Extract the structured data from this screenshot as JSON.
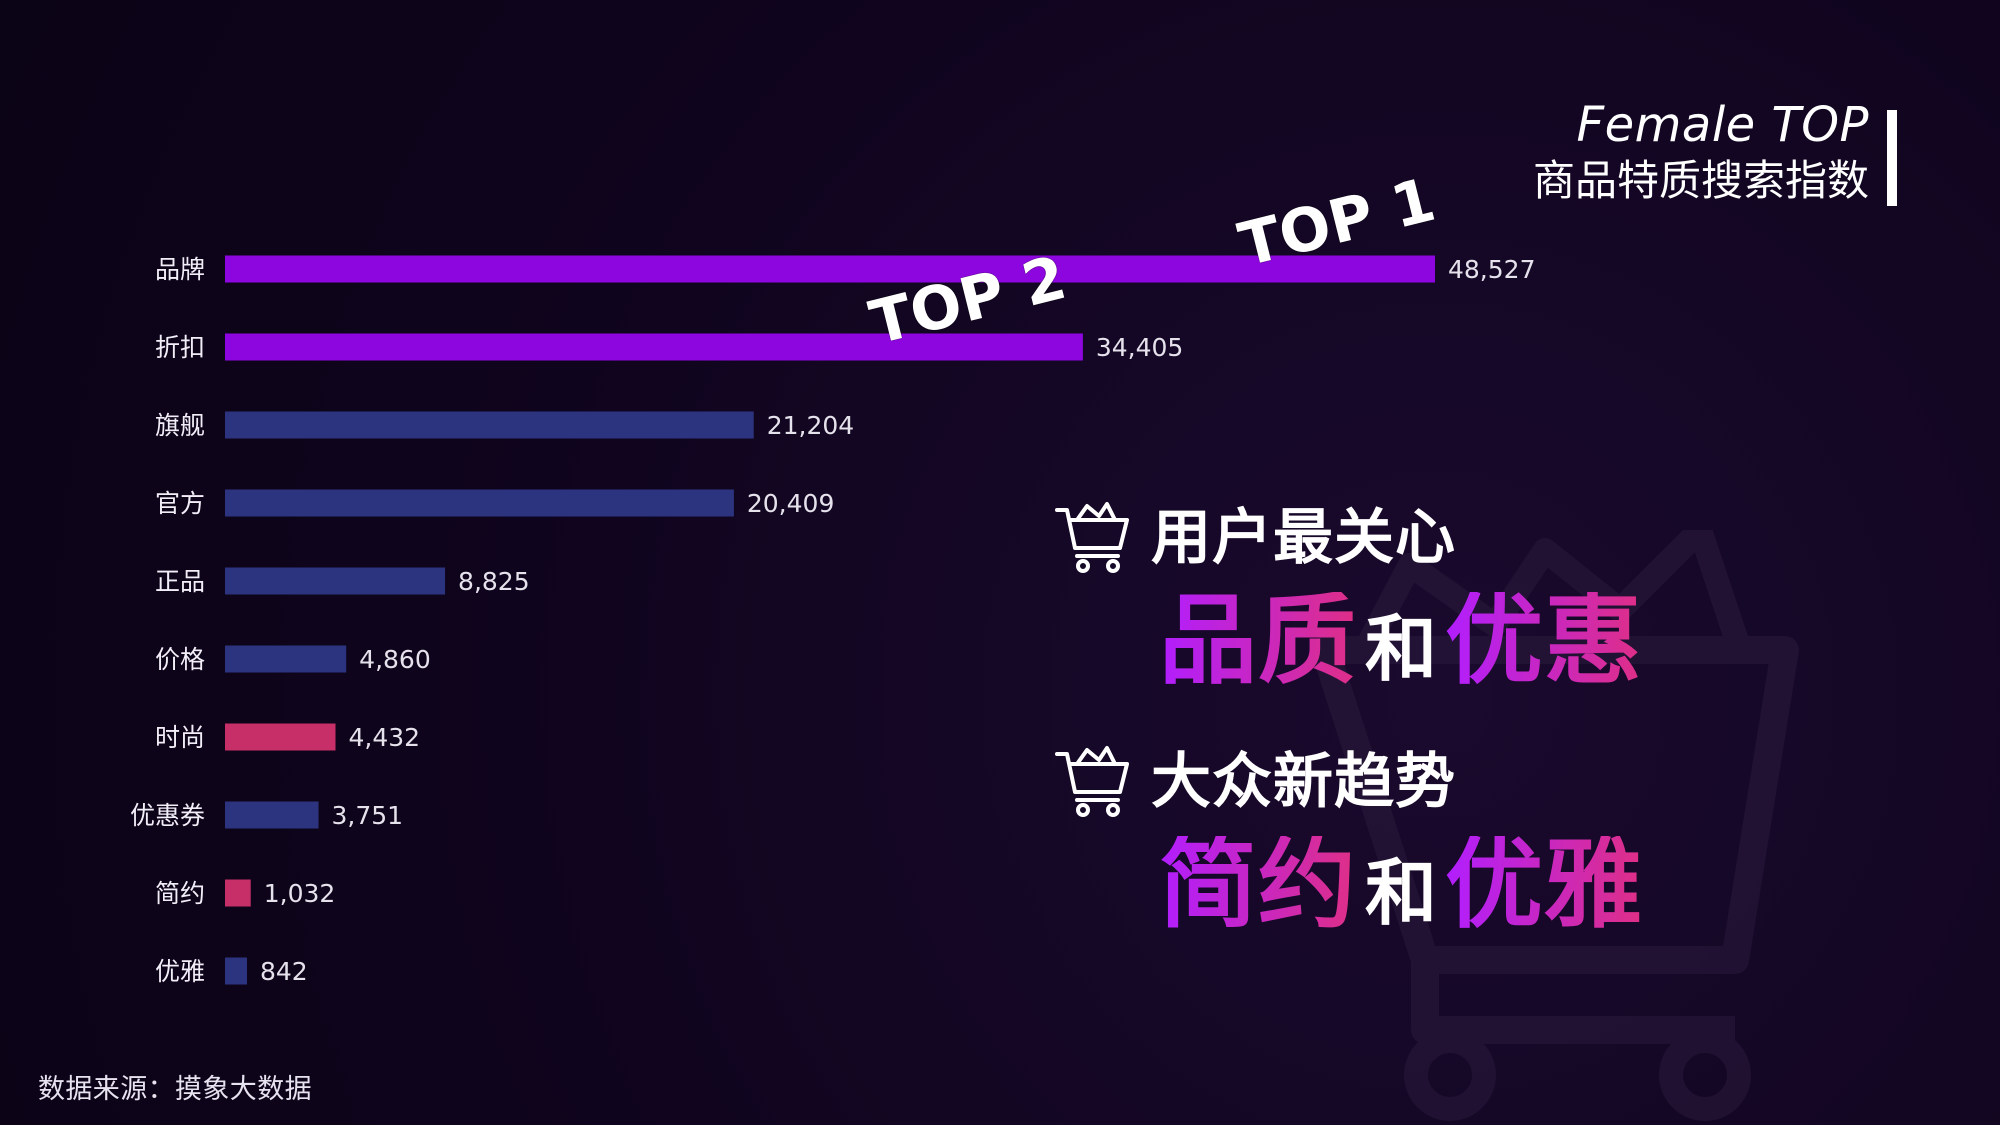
{
  "header": {
    "title_en": "Female TOP",
    "title_zh": "商品特质搜索指数"
  },
  "chart_data": {
    "type": "bar",
    "categories": [
      "品牌",
      "折扣",
      "旗舰",
      "官方",
      "正品",
      "价格",
      "时尚",
      "优惠券",
      "简约",
      "优雅"
    ],
    "values": [
      48527,
      34405,
      21204,
      20409,
      8825,
      4860,
      4432,
      3751,
      1032,
      842
    ],
    "value_labels": [
      "48,527",
      "34,405",
      "21,204",
      "20,409",
      "8,825",
      "4,860",
      "4,432",
      "3,751",
      "1,032",
      "842"
    ],
    "bar_colors": [
      "#8d06df",
      "#8d06df",
      "#2d347f",
      "#2d347f",
      "#2d347f",
      "#2d347f",
      "#c62f67",
      "#2d347f",
      "#c62f67",
      "#2d347f"
    ],
    "xlim": [
      0,
      48527
    ],
    "title": "",
    "xlabel": "",
    "ylabel": "",
    "annotations": [
      "TOP 1",
      "TOP 2"
    ]
  },
  "insights": [
    {
      "line": "用户最关心",
      "emph_a": "品质",
      "joiner": "和",
      "emph_b": "优惠"
    },
    {
      "line": "大众新趋势",
      "emph_a": "简约",
      "joiner": "和",
      "emph_b": "优雅"
    }
  ],
  "source": "数据来源：摸象大数据",
  "icons": {
    "cart": "shopping-cart-icon",
    "background_cart": "background-cart-icon"
  },
  "colors": {
    "background": "#10051f",
    "highlight_purple": "#8d06df",
    "highlight_pink": "#c62f67",
    "bar_blue": "#2d347f",
    "text_white": "#ffffff"
  }
}
